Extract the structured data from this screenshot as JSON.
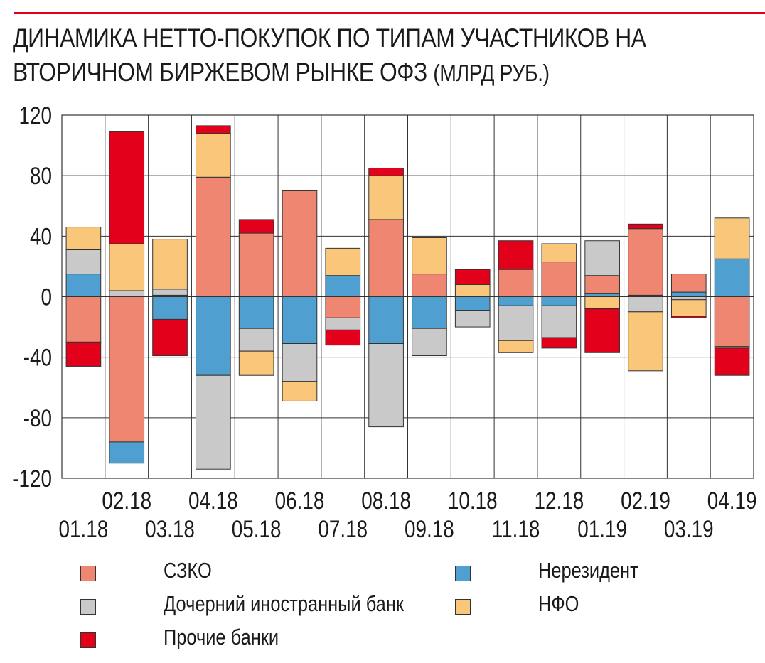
{
  "title": "ДИНАМИКА НЕТТО-ПОКУПОК ПО ТИПАМ УЧАСТНИКОВ НА ВТОРИЧНОМ БИРЖЕВОМ РЫНКЕ ОФЗ",
  "title_unit": "(МЛРД РУБ.)",
  "legend": [
    {
      "key": "szko",
      "label": "СЗКО"
    },
    {
      "key": "nonres",
      "label": "Нерезидент"
    },
    {
      "key": "daughter",
      "label": "Дочерний иностранный банк"
    },
    {
      "key": "nfo",
      "label": "НФО"
    },
    {
      "key": "other",
      "label": "Прочие банки"
    }
  ],
  "colors": {
    "szko": "#ee8672",
    "nonres": "#4f9fd0",
    "daughter": "#c9c9c9",
    "nfo": "#fac67a",
    "other": "#e3001b",
    "accent_rule": "#e3001b"
  },
  "chart_data": {
    "type": "bar",
    "stacked": true,
    "title": "ДИНАМИКА НЕТТО-ПОКУПОК ПО ТИПАМ УЧАСТНИКОВ НА ВТОРИЧНОМ БИРЖЕВОМ РЫНКЕ ОФЗ (МЛРД РУБ.)",
    "xlabel": "",
    "ylabel": "",
    "ylim": [
      -120,
      120
    ],
    "yticks": [
      120,
      80,
      40,
      0,
      -40,
      -80,
      -120
    ],
    "ytick_labels": [
      "120",
      "80",
      "40",
      "0",
      "-40",
      "-80",
      "-120"
    ],
    "grid": true,
    "categories": [
      "01.18",
      "02.18",
      "03.18",
      "04.18",
      "05.18",
      "06.18",
      "07.18",
      "08.18",
      "09.18",
      "10.18",
      "11.18",
      "12.18",
      "01.19",
      "02.19",
      "03.19",
      "04.19"
    ],
    "stack_order_positive": [
      "nonres",
      "szko",
      "daughter",
      "nfo",
      "other"
    ],
    "stack_order_negative": [
      "szko",
      "nonres",
      "daughter",
      "nfo",
      "other"
    ],
    "series": [
      {
        "key": "szko",
        "name": "СЗКО",
        "values": [
          -30,
          -96,
          1,
          79,
          42,
          70,
          -14,
          51,
          15,
          0,
          18,
          23,
          12,
          44,
          12,
          -33
        ]
      },
      {
        "key": "nonres",
        "name": "Нерезидент",
        "values": [
          15,
          -14,
          -15,
          -52,
          -21,
          -31,
          14,
          -31,
          -21,
          -9,
          -6,
          -6,
          2,
          1,
          3,
          25
        ]
      },
      {
        "key": "daughter",
        "name": "Дочерний иностранный банк",
        "values": [
          16,
          4,
          4,
          -62,
          -15,
          -25,
          -8,
          -55,
          -18,
          -11,
          -23,
          -21,
          23,
          -10,
          -2,
          -1
        ]
      },
      {
        "key": "nfo",
        "name": "НФО",
        "values": [
          15,
          31,
          33,
          29,
          -16,
          -13,
          18,
          29,
          24,
          8,
          -8,
          12,
          -8,
          -39,
          -11,
          27
        ]
      },
      {
        "key": "other",
        "name": "Прочие банки",
        "values": [
          -16,
          74,
          -24,
          5,
          9,
          0,
          -10,
          5,
          0,
          10,
          19,
          -7,
          -29,
          3,
          -1,
          -18
        ]
      }
    ]
  }
}
